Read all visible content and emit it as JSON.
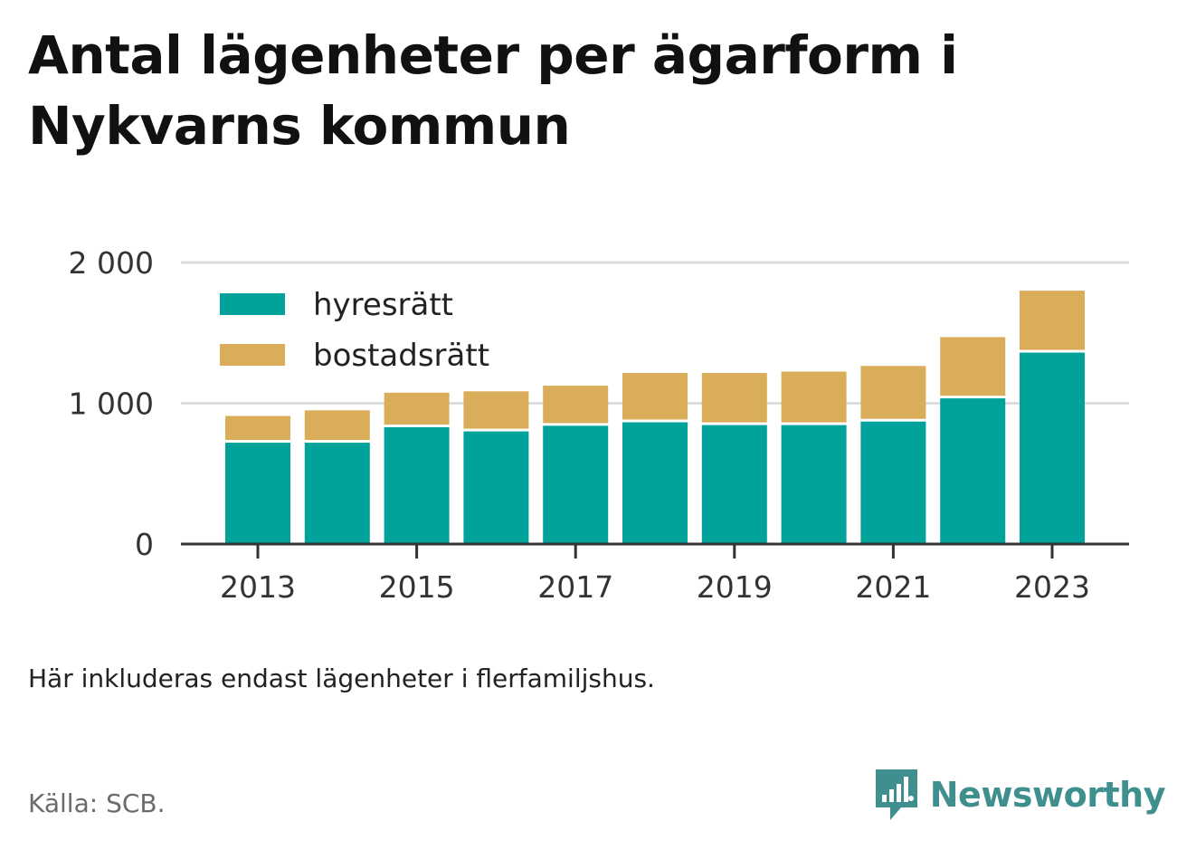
{
  "title": "Antal lägenheter per ägarform i Nykvarns kommun",
  "note": "Här inkluderas endast lägenheter i flerfamiljshus.",
  "source": "Källa: SCB.",
  "brand": "Newsworthy",
  "colors": {
    "hyresratt": "#00a29a",
    "bostadsratt": "#d9ad5a",
    "grid": "#dddddd",
    "axis": "#333333",
    "brand": "#3f8f8e"
  },
  "chart_data": {
    "type": "bar",
    "stacked": true,
    "x": [
      2013,
      2014,
      2015,
      2016,
      2017,
      2018,
      2019,
      2020,
      2021,
      2022,
      2023
    ],
    "x_tick_labels": [
      "2013",
      "2015",
      "2017",
      "2019",
      "2021",
      "2023"
    ],
    "y_ticks": [
      0,
      1000,
      2000
    ],
    "y_tick_labels": [
      "0",
      "1 000",
      "2 000"
    ],
    "ylim": [
      0,
      2000
    ],
    "grid": true,
    "legend_position": "top-left",
    "series": [
      {
        "name": "hyresrätt",
        "color": "#00a29a",
        "values": [
          720,
          720,
          830,
          800,
          840,
          865,
          845,
          845,
          870,
          1035,
          1360
        ]
      },
      {
        "name": "bostadsrätt",
        "color": "#d9ad5a",
        "values": [
          190,
          230,
          245,
          285,
          285,
          350,
          370,
          380,
          395,
          435,
          440
        ]
      }
    ]
  }
}
